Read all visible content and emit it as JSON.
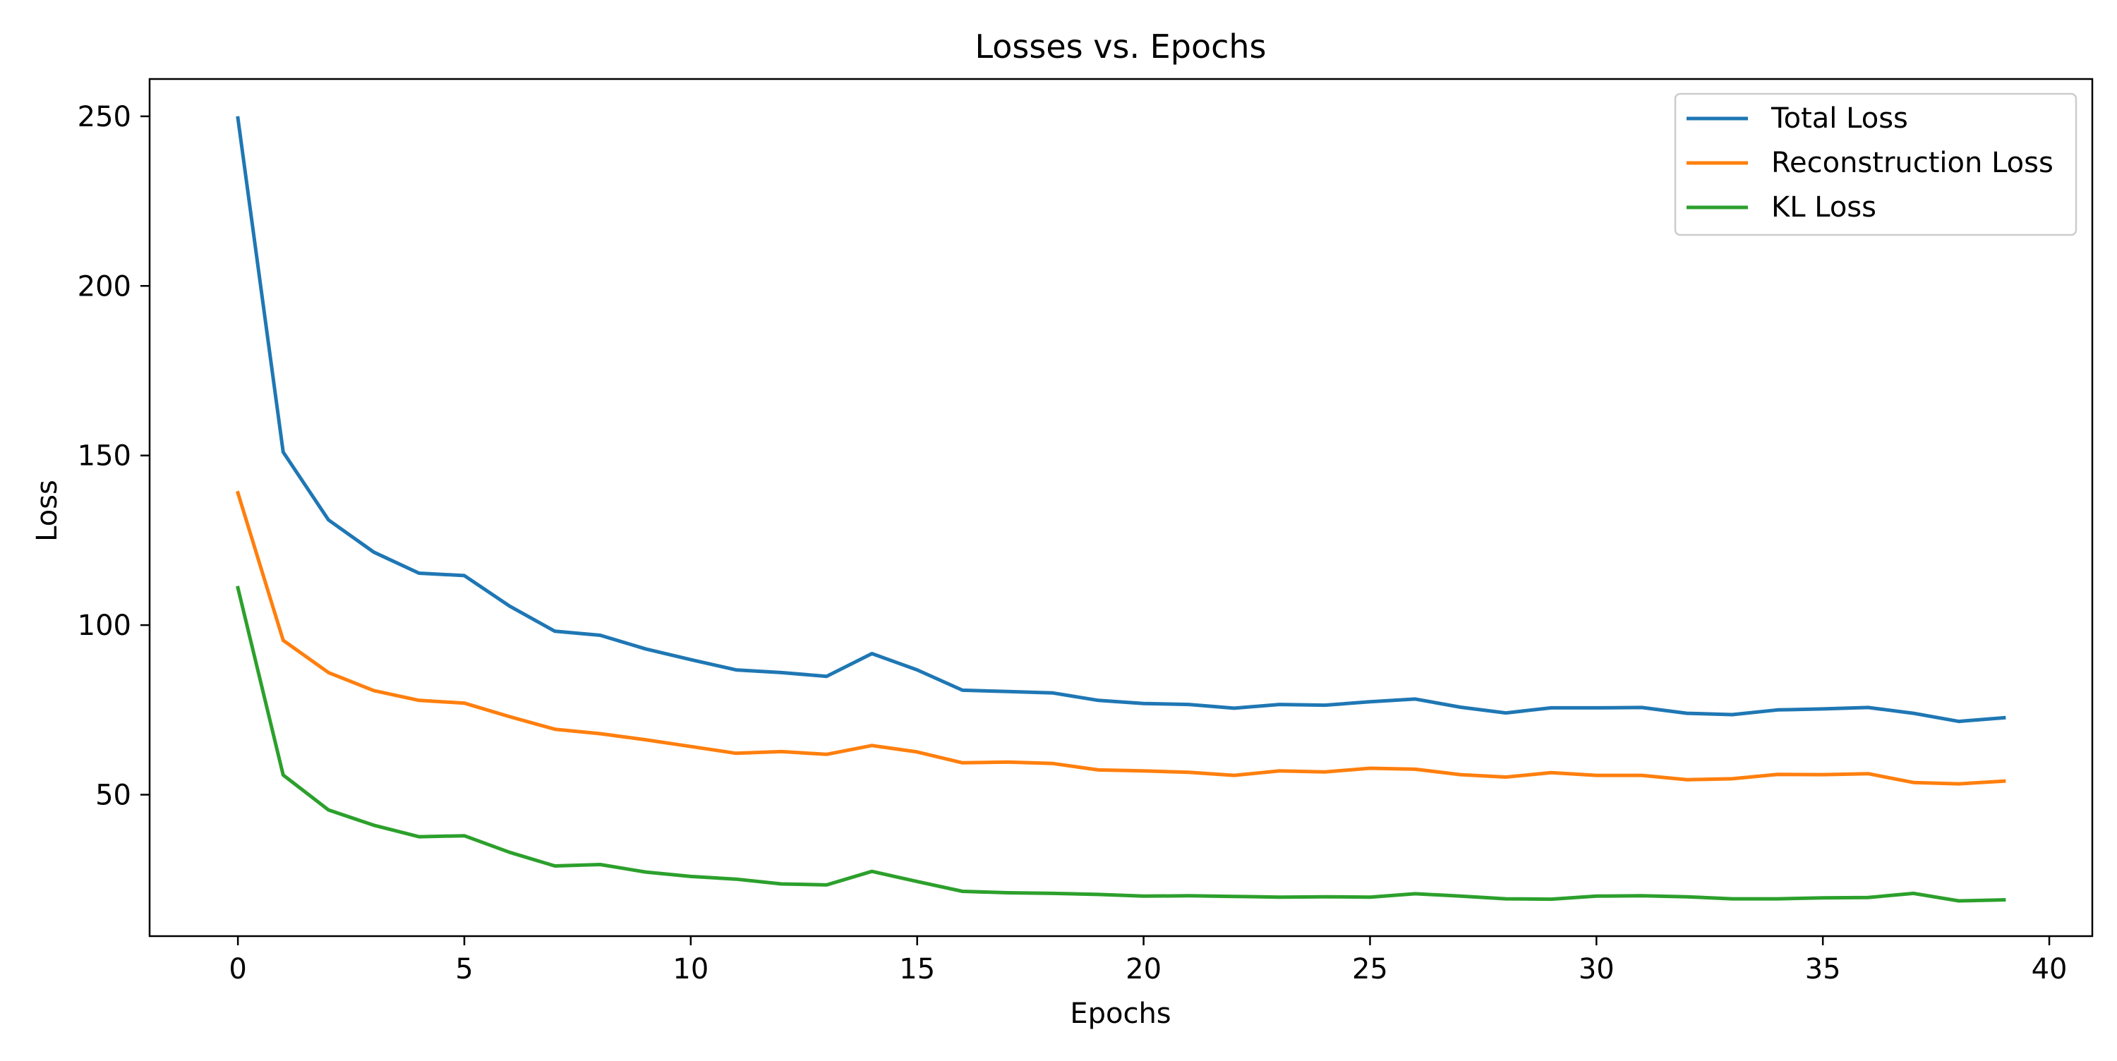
{
  "chart_data": {
    "type": "line",
    "title": "Losses vs. Epochs",
    "xlabel": "Epochs",
    "ylabel": "Loss",
    "xlim": [
      -1.95,
      40.95
    ],
    "ylim": [
      8.3,
      261.0
    ],
    "xticks": [
      0,
      5,
      10,
      15,
      20,
      25,
      30,
      35,
      40
    ],
    "yticks": [
      50,
      100,
      150,
      200,
      250
    ],
    "grid": false,
    "legend_position": "top-right",
    "x": [
      0,
      1,
      2,
      3,
      4,
      5,
      6,
      7,
      8,
      9,
      10,
      11,
      12,
      13,
      14,
      15,
      16,
      17,
      18,
      19,
      20,
      21,
      22,
      23,
      24,
      25,
      26,
      27,
      28,
      29,
      30,
      31,
      32,
      33,
      34,
      35,
      36,
      37,
      38,
      39
    ],
    "series": [
      {
        "name": "Total Loss",
        "color": "#1f77b4",
        "values": [
          249.5,
          151.0,
          131.0,
          121.5,
          115.3,
          114.6,
          105.6,
          98.2,
          97.0,
          93.0,
          89.8,
          86.8,
          86.0,
          84.9,
          91.6,
          86.8,
          80.8,
          80.4,
          80.0,
          77.8,
          76.9,
          76.6,
          75.5,
          76.6,
          76.4,
          77.4,
          78.2,
          75.8,
          74.1,
          75.6,
          75.6,
          75.7,
          74.0,
          73.6,
          75.0,
          75.3,
          75.7,
          74.0,
          71.6,
          72.7
        ]
      },
      {
        "name": "Reconstruction Loss",
        "color": "#ff7f0e",
        "values": [
          139.0,
          95.5,
          86.0,
          80.7,
          77.8,
          77.0,
          73.0,
          69.3,
          68.0,
          66.2,
          64.2,
          62.2,
          62.7,
          61.9,
          64.5,
          62.6,
          59.4,
          59.6,
          59.2,
          57.3,
          57.0,
          56.6,
          55.7,
          57.0,
          56.7,
          57.8,
          57.5,
          55.9,
          55.2,
          56.5,
          55.7,
          55.7,
          54.4,
          54.7,
          56.0,
          55.9,
          56.2,
          53.6,
          53.2,
          54.0
        ]
      },
      {
        "name": "KL Loss",
        "color": "#2ca02c",
        "values": [
          111.0,
          55.8,
          45.5,
          41.0,
          37.6,
          37.9,
          33.0,
          29.0,
          29.4,
          27.2,
          25.9,
          25.1,
          23.7,
          23.4,
          27.4,
          24.4,
          21.5,
          21.1,
          20.9,
          20.6,
          20.1,
          20.2,
          20.0,
          19.8,
          19.9,
          19.8,
          20.8,
          20.1,
          19.3,
          19.2,
          20.1,
          20.2,
          19.9,
          19.3,
          19.3,
          19.6,
          19.7,
          20.9,
          18.7,
          19.0
        ]
      }
    ]
  }
}
